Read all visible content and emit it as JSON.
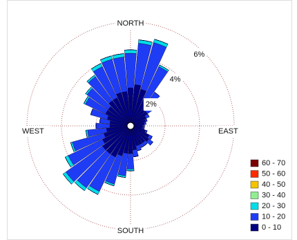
{
  "chart_data": {
    "type": "windrose",
    "compass": {
      "north": "NORTH",
      "east": "EAST",
      "south": "SOUTH",
      "west": "WEST"
    },
    "x": [
      0,
      10,
      20,
      30,
      40,
      50,
      60,
      70,
      80,
      90,
      100,
      110,
      120,
      130,
      140,
      150,
      160,
      170,
      180,
      190,
      200,
      210,
      220,
      230,
      240,
      250,
      260,
      270,
      280,
      290,
      300,
      310,
      320,
      330,
      340,
      350
    ],
    "rlim": [
      0,
      6
    ],
    "rticks": [
      {
        "value": 2,
        "label": "2%"
      },
      {
        "value": 4,
        "label": "4%"
      },
      {
        "value": 6,
        "label": "6%"
      }
    ],
    "series": [
      {
        "name": "0 - 10",
        "color": "#000080",
        "values": [
          2.2,
          2.4,
          2.2,
          1.8,
          1.4,
          1.2,
          1.0,
          0.9,
          0.8,
          0.7,
          0.7,
          0.9,
          1.2,
          1.3,
          1.2,
          1.2,
          1.2,
          1.4,
          1.6,
          1.6,
          1.8,
          2.0,
          2.0,
          2.0,
          1.8,
          1.6,
          1.4,
          1.2,
          1.2,
          1.4,
          1.6,
          1.6,
          1.8,
          1.8,
          2.0,
          2.0
        ]
      },
      {
        "name": "10 - 20",
        "color": "#1f3cf5",
        "values": [
          2.0,
          2.4,
          2.8,
          2.0,
          1.0,
          0.4,
          0.2,
          0.1,
          0.1,
          0.1,
          0.1,
          0.1,
          0.2,
          0.3,
          0.2,
          0.2,
          0.3,
          0.4,
          0.9,
          1.3,
          1.7,
          2.2,
          2.4,
          2.6,
          2.2,
          1.9,
          1.1,
          0.8,
          0.6,
          1.0,
          1.3,
          1.5,
          1.7,
          2.0,
          2.0,
          2.0
        ]
      },
      {
        "name": "20 - 30",
        "color": "#00dde8",
        "values": [
          0.2,
          0.2,
          0.2,
          0.1,
          0,
          0,
          0,
          0,
          0,
          0,
          0,
          0,
          0,
          0,
          0,
          0,
          0,
          0,
          0.1,
          0.1,
          0.1,
          0.2,
          0.2,
          0.2,
          0.2,
          0.1,
          0.1,
          0,
          0,
          0,
          0.1,
          0.1,
          0.1,
          0.2,
          0.2,
          0.2
        ]
      },
      {
        "name": "30 - 40",
        "color": "#90ee90",
        "values": [
          0,
          0,
          0,
          0,
          0,
          0,
          0,
          0,
          0,
          0,
          0,
          0,
          0,
          0,
          0,
          0,
          0,
          0,
          0,
          0,
          0,
          0,
          0,
          0,
          0,
          0,
          0,
          0,
          0,
          0,
          0,
          0,
          0,
          0,
          0,
          0
        ]
      },
      {
        "name": "40 - 50",
        "color": "#f5c400",
        "values": [
          0,
          0,
          0,
          0,
          0,
          0,
          0,
          0,
          0,
          0,
          0,
          0,
          0,
          0,
          0,
          0,
          0,
          0,
          0,
          0,
          0,
          0,
          0,
          0,
          0,
          0,
          0,
          0,
          0,
          0,
          0,
          0,
          0,
          0,
          0,
          0
        ]
      },
      {
        "name": "50 - 60",
        "color": "#ff2a00",
        "values": [
          0,
          0,
          0,
          0,
          0,
          0,
          0,
          0,
          0,
          0,
          0,
          0,
          0,
          0,
          0,
          0,
          0,
          0,
          0,
          0,
          0,
          0,
          0,
          0,
          0,
          0,
          0,
          0,
          0,
          0,
          0,
          0,
          0,
          0,
          0,
          0
        ]
      },
      {
        "name": "60 - 70",
        "color": "#7a0000",
        "values": [
          0,
          0,
          0,
          0,
          0,
          0,
          0,
          0,
          0,
          0,
          0,
          0,
          0,
          0,
          0,
          0,
          0,
          0,
          0,
          0,
          0,
          0,
          0,
          0,
          0,
          0,
          0,
          0,
          0,
          0,
          0,
          0,
          0,
          0,
          0,
          0
        ]
      }
    ]
  }
}
